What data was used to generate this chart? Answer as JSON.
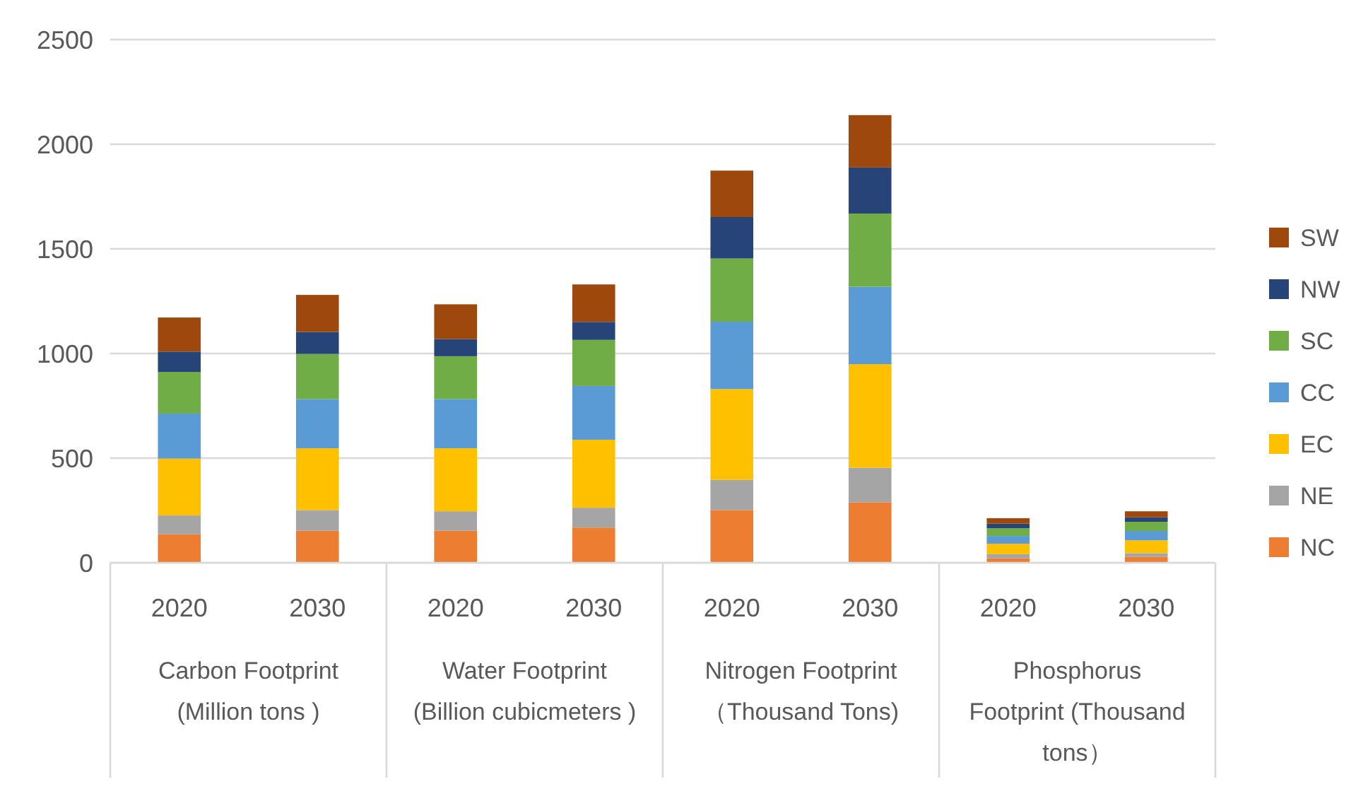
{
  "chart_data": {
    "type": "bar",
    "stacked": true,
    "categories": [
      "2020",
      "2030",
      "2020",
      "2030",
      "2020",
      "2030",
      "2020",
      "2030"
    ],
    "annotations": [
      "Carbon Footprint (Million tons )",
      "Water Footprint (Billion cubicmeters )",
      "Nitrogen Footprint （Thousand Tons)",
      "Phosphorus Footprint (Thousand tons）"
    ],
    "series": [
      {
        "name": "NC",
        "color": "#ed7d31",
        "values": [
          136,
          153,
          153,
          168,
          252,
          289,
          22,
          28
        ]
      },
      {
        "name": "NE",
        "color": "#a5a5a5",
        "values": [
          90,
          99,
          93,
          95,
          144,
          165,
          19,
          18
        ]
      },
      {
        "name": "EC",
        "color": "#ffc000",
        "values": [
          272,
          295,
          301,
          325,
          434,
          495,
          50,
          61
        ]
      },
      {
        "name": "CC",
        "color": "#5b9bd5",
        "values": [
          215,
          235,
          235,
          257,
          322,
          370,
          37,
          45
        ]
      },
      {
        "name": "SC",
        "color": "#70ad47",
        "values": [
          199,
          216,
          205,
          220,
          302,
          350,
          37,
          44
        ]
      },
      {
        "name": "NW",
        "color": "#264478",
        "values": [
          97,
          105,
          82,
          86,
          198,
          220,
          22,
          21
        ]
      },
      {
        "name": "SW",
        "color": "#9e480e",
        "values": [
          163,
          177,
          166,
          179,
          222,
          250,
          26,
          29
        ]
      }
    ],
    "ylim": [
      0,
      2500
    ],
    "yticks": [
      0,
      500,
      1000,
      1500,
      2000,
      2500
    ],
    "grid": "y",
    "legend": "right"
  }
}
